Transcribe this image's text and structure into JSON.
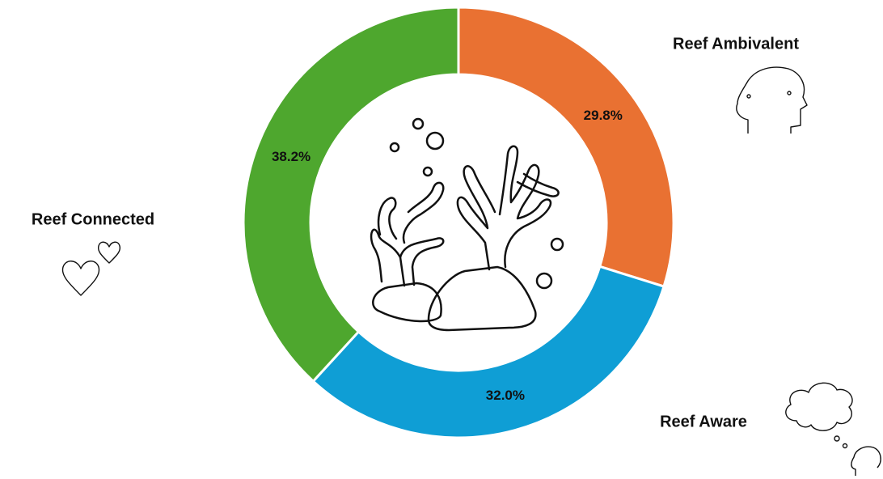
{
  "chart_data": {
    "type": "donut",
    "categories": [
      "Reef Ambivalent",
      "Reef Aware",
      "Reef Connected"
    ],
    "values": [
      29.8,
      32.0,
      38.2
    ],
    "value_labels": [
      "29.8%",
      "32.0%",
      "38.2%"
    ],
    "colors": [
      "#E97132",
      "#0F9ED5",
      "#4EA72E"
    ]
  }
}
